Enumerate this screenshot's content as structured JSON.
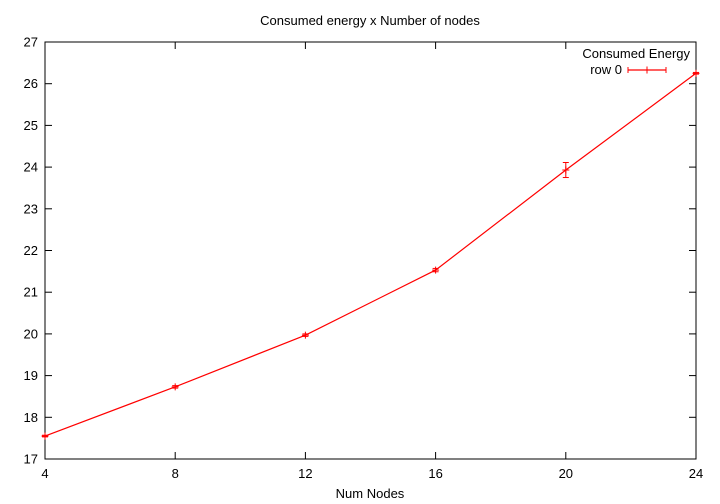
{
  "chart_data": {
    "type": "line",
    "title": "Consumed energy x Number of nodes",
    "xlabel": "Num Nodes",
    "ylabel": "",
    "xlim": [
      4,
      24
    ],
    "ylim": [
      17,
      27
    ],
    "x_ticks": [
      "4",
      "8",
      "12",
      "16",
      "20",
      "24"
    ],
    "y_ticks": [
      "17",
      "18",
      "19",
      "20",
      "21",
      "22",
      "23",
      "24",
      "25",
      "26",
      "27"
    ],
    "legend": {
      "title": "Consumed Energy",
      "placement": "top-right"
    },
    "grid": false,
    "series": [
      {
        "name": "row 0",
        "color": "#ff0000",
        "x": [
          4,
          8,
          12,
          16,
          20,
          24
        ],
        "y": [
          17.55,
          18.73,
          19.97,
          21.53,
          23.93,
          26.25
        ],
        "error": [
          0.02,
          0.03,
          0.03,
          0.04,
          0.18,
          0.02
        ]
      }
    ]
  }
}
